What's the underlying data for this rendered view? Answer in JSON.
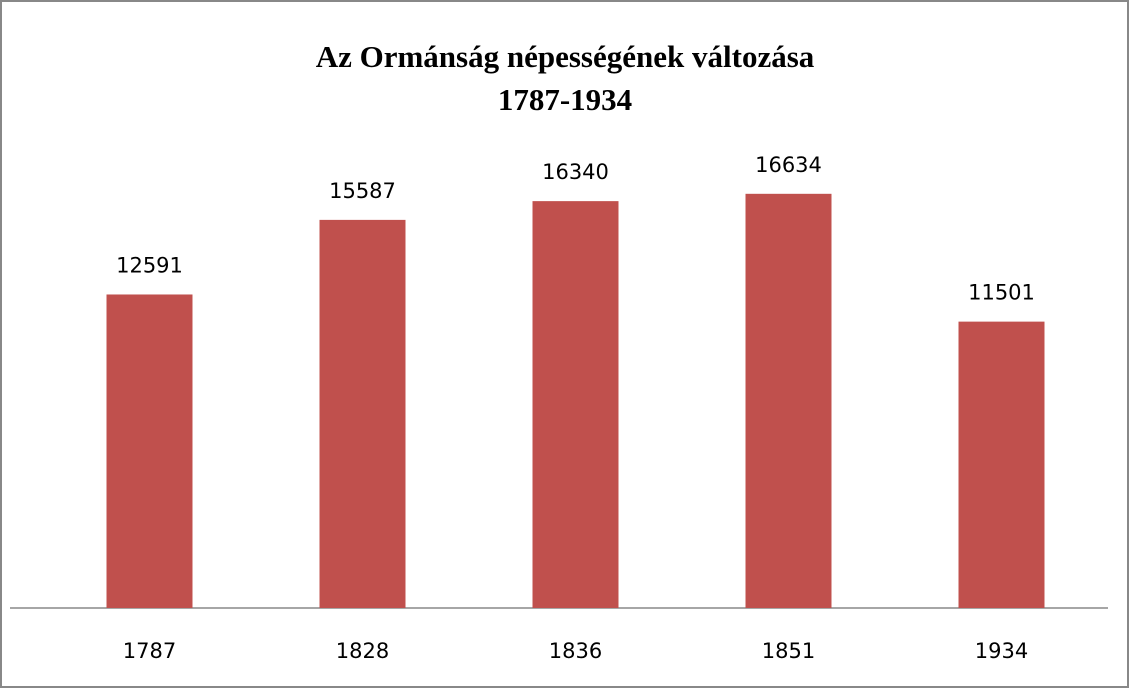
{
  "chart_data": {
    "type": "bar",
    "title": [
      "Az Ormánság népességének változása",
      "1787-1934"
    ],
    "categories": [
      "1787",
      "1828",
      "1836",
      "1851",
      "1934"
    ],
    "values": [
      12591,
      15587,
      16340,
      16634,
      11501
    ],
    "color": "#c0504d",
    "ylim": [
      0,
      20000
    ]
  }
}
